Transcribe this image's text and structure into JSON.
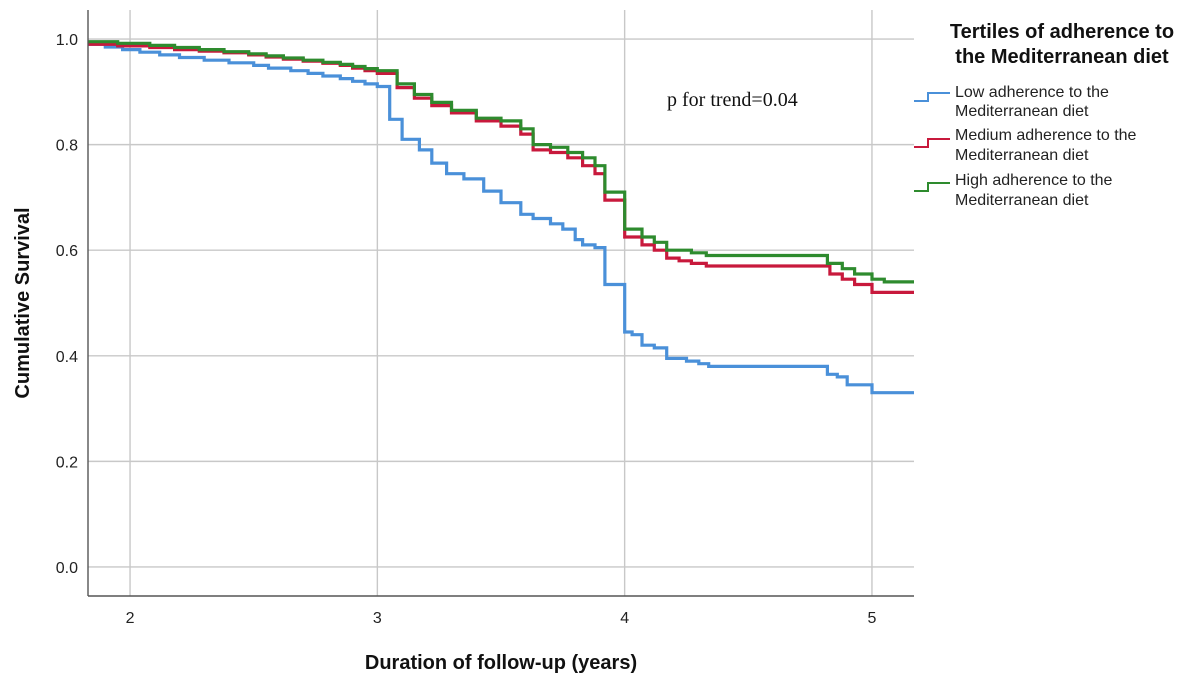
{
  "chart_data": {
    "type": "line",
    "step": true,
    "xlabel": "Duration of follow-up (years)",
    "ylabel": "Cumulative Survival",
    "xlim": [
      1.83,
      5.17
    ],
    "ylim": [
      -0.055,
      1.055
    ],
    "x_ticks": [
      2,
      3,
      4,
      5
    ],
    "y_ticks": [
      0.0,
      0.2,
      0.4,
      0.6,
      0.8,
      1.0
    ],
    "x_tick_labels": [
      "2",
      "3",
      "4",
      "5"
    ],
    "y_tick_labels": [
      "0.0",
      "0.2",
      "0.4",
      "0.6",
      "0.8",
      "1.0"
    ],
    "grid": true,
    "annotation": "p for trend=0.04",
    "legend": {
      "title_lines": [
        "Tertiles of adherence to",
        "the Mediterranean diet"
      ],
      "placement": "right"
    },
    "series": [
      {
        "key": "low",
        "name_lines": [
          "Low adherence to the",
          "Mediterranean diet"
        ],
        "color": "#4a90d9",
        "x": [
          1.83,
          1.9,
          1.97,
          2.04,
          2.12,
          2.2,
          2.3,
          2.4,
          2.5,
          2.56,
          2.65,
          2.72,
          2.78,
          2.85,
          2.9,
          2.95,
          3.0,
          3.05,
          3.1,
          3.17,
          3.22,
          3.28,
          3.35,
          3.43,
          3.5,
          3.58,
          3.63,
          3.7,
          3.75,
          3.8,
          3.83,
          3.88,
          3.92,
          3.95,
          3.97,
          4.0,
          4.03,
          4.07,
          4.12,
          4.17,
          4.2,
          4.25,
          4.3,
          4.34,
          4.4,
          4.5,
          4.6,
          4.7,
          4.8,
          4.82,
          4.86,
          4.9,
          4.95,
          5.0,
          5.05,
          5.1,
          5.17
        ],
        "y": [
          0.99,
          0.985,
          0.98,
          0.975,
          0.97,
          0.965,
          0.96,
          0.955,
          0.95,
          0.945,
          0.94,
          0.935,
          0.93,
          0.925,
          0.92,
          0.915,
          0.91,
          0.848,
          0.81,
          0.79,
          0.765,
          0.745,
          0.735,
          0.712,
          0.69,
          0.668,
          0.66,
          0.65,
          0.64,
          0.62,
          0.61,
          0.605,
          0.535,
          0.535,
          0.535,
          0.445,
          0.44,
          0.42,
          0.415,
          0.395,
          0.395,
          0.39,
          0.385,
          0.38,
          0.38,
          0.38,
          0.38,
          0.38,
          0.38,
          0.365,
          0.36,
          0.345,
          0.345,
          0.33,
          0.33,
          0.33,
          0.33
        ]
      },
      {
        "key": "medium",
        "name_lines": [
          "Medium adherence to the",
          "Mediterranean diet"
        ],
        "color": "#c8193c",
        "x": [
          1.83,
          1.95,
          2.08,
          2.18,
          2.28,
          2.38,
          2.48,
          2.55,
          2.62,
          2.7,
          2.78,
          2.85,
          2.9,
          2.95,
          3.0,
          3.08,
          3.15,
          3.22,
          3.3,
          3.4,
          3.5,
          3.58,
          3.63,
          3.7,
          3.77,
          3.83,
          3.88,
          3.92,
          3.95,
          4.0,
          4.07,
          4.12,
          4.17,
          4.22,
          4.27,
          4.33,
          4.4,
          4.5,
          4.6,
          4.7,
          4.8,
          4.83,
          4.88,
          4.93,
          5.0,
          5.05,
          5.17
        ],
        "y": [
          0.99,
          0.987,
          0.984,
          0.98,
          0.977,
          0.974,
          0.97,
          0.966,
          0.962,
          0.958,
          0.954,
          0.95,
          0.945,
          0.94,
          0.935,
          0.908,
          0.888,
          0.874,
          0.86,
          0.845,
          0.835,
          0.82,
          0.79,
          0.785,
          0.775,
          0.76,
          0.745,
          0.695,
          0.695,
          0.625,
          0.61,
          0.6,
          0.585,
          0.58,
          0.575,
          0.57,
          0.57,
          0.57,
          0.57,
          0.57,
          0.57,
          0.555,
          0.545,
          0.535,
          0.52,
          0.52,
          0.52
        ]
      },
      {
        "key": "high",
        "name_lines": [
          "High adherence to the",
          "Mediterranean diet"
        ],
        "color": "#2e8b2e",
        "x": [
          1.83,
          1.95,
          2.08,
          2.18,
          2.28,
          2.38,
          2.48,
          2.55,
          2.62,
          2.7,
          2.78,
          2.85,
          2.9,
          2.95,
          3.0,
          3.08,
          3.15,
          3.22,
          3.3,
          3.4,
          3.5,
          3.58,
          3.63,
          3.7,
          3.77,
          3.83,
          3.88,
          3.92,
          3.95,
          4.0,
          4.07,
          4.12,
          4.17,
          4.22,
          4.27,
          4.33,
          4.4,
          4.5,
          4.6,
          4.7,
          4.82,
          4.88,
          4.93,
          5.0,
          5.05,
          5.17
        ],
        "y": [
          0.995,
          0.992,
          0.988,
          0.984,
          0.98,
          0.976,
          0.972,
          0.968,
          0.964,
          0.96,
          0.956,
          0.952,
          0.948,
          0.944,
          0.94,
          0.915,
          0.895,
          0.88,
          0.865,
          0.85,
          0.845,
          0.83,
          0.8,
          0.795,
          0.785,
          0.775,
          0.76,
          0.71,
          0.71,
          0.64,
          0.625,
          0.615,
          0.6,
          0.6,
          0.595,
          0.59,
          0.59,
          0.59,
          0.59,
          0.59,
          0.575,
          0.565,
          0.555,
          0.545,
          0.54,
          0.54
        ]
      }
    ]
  }
}
